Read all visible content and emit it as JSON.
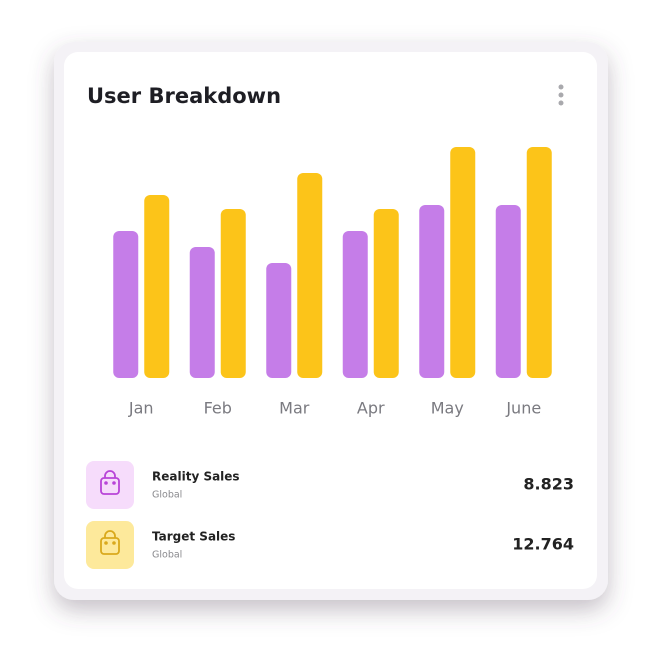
{
  "chart_data": {
    "type": "bar",
    "title": "User Breakdown",
    "categories": [
      "Jan",
      "Feb",
      "Mar",
      "Apr",
      "May",
      "June"
    ],
    "series": [
      {
        "name": "Reality Sales",
        "color": "#c57de8",
        "values": [
          147,
          131,
          115,
          147,
          173,
          173
        ],
        "subtitle": "Global",
        "total": 8.823,
        "icon_bg": "#f6dcfb",
        "icon_color": "#b844d8"
      },
      {
        "name": "Target Sales",
        "color": "#fcc419",
        "values": [
          183,
          169,
          205,
          169,
          231,
          231
        ],
        "subtitle": "Global",
        "total": 12.764,
        "icon_bg": "#fde99b",
        "icon_color": "#d9a91c"
      }
    ]
  }
}
